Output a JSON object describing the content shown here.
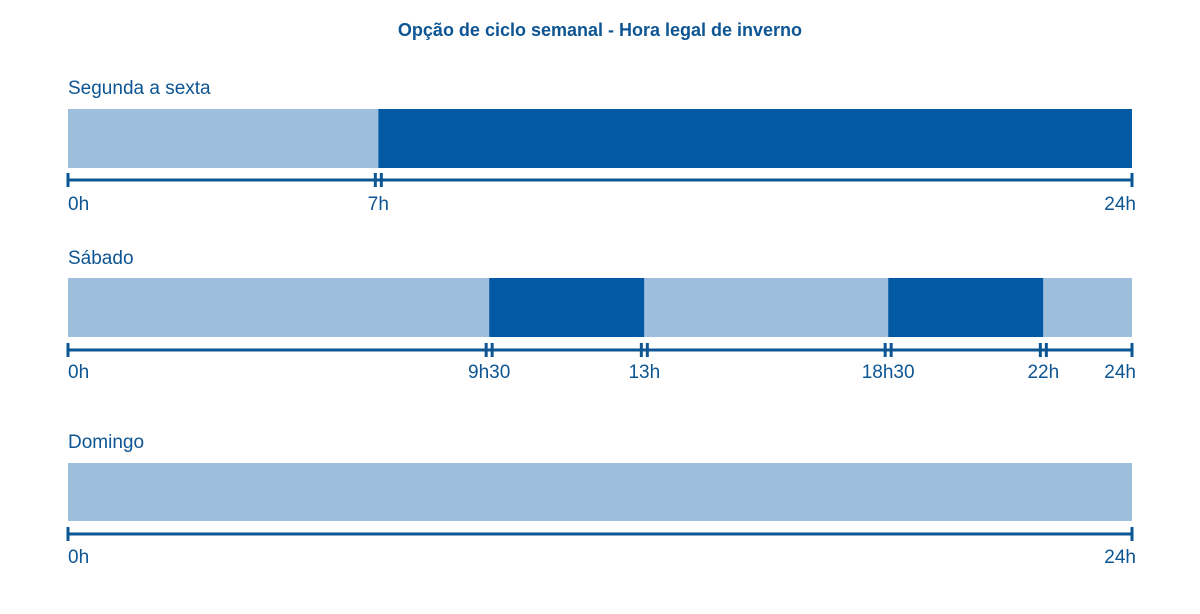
{
  "title": "Opção de ciclo semanal - Hora legal de inverno",
  "colors": {
    "off_peak": "#9dbfdd",
    "peak": "#0359a4",
    "axis": "#0d5593",
    "text": "#0d5593"
  },
  "chart_data": {
    "type": "timeline",
    "title": "Opção de ciclo semanal - Hora legal de inverno",
    "x_unit": "hours",
    "xlim": [
      0,
      24
    ],
    "rows": [
      {
        "label": "Segunda a sexta",
        "segments": [
          {
            "start": 0,
            "end": 7,
            "kind": "off_peak"
          },
          {
            "start": 7,
            "end": 24,
            "kind": "peak"
          }
        ],
        "ticks": [
          {
            "value": 0,
            "label": "0h"
          },
          {
            "value": 7,
            "label": "7h"
          },
          {
            "value": 24,
            "label": "24h"
          }
        ]
      },
      {
        "label": "Sábado",
        "segments": [
          {
            "start": 0,
            "end": 9.5,
            "kind": "off_peak"
          },
          {
            "start": 9.5,
            "end": 13,
            "kind": "peak"
          },
          {
            "start": 13,
            "end": 18.5,
            "kind": "off_peak"
          },
          {
            "start": 18.5,
            "end": 22,
            "kind": "peak"
          },
          {
            "start": 22,
            "end": 24,
            "kind": "off_peak"
          }
        ],
        "ticks": [
          {
            "value": 0,
            "label": "0h"
          },
          {
            "value": 9.5,
            "label": "9h30"
          },
          {
            "value": 13,
            "label": "13h"
          },
          {
            "value": 18.5,
            "label": "18h30"
          },
          {
            "value": 22,
            "label": "22h"
          },
          {
            "value": 24,
            "label": "24h"
          }
        ]
      },
      {
        "label": "Domingo",
        "segments": [
          {
            "start": 0,
            "end": 24,
            "kind": "off_peak"
          }
        ],
        "ticks": [
          {
            "value": 0,
            "label": "0h"
          },
          {
            "value": 24,
            "label": "24h"
          }
        ]
      }
    ]
  }
}
